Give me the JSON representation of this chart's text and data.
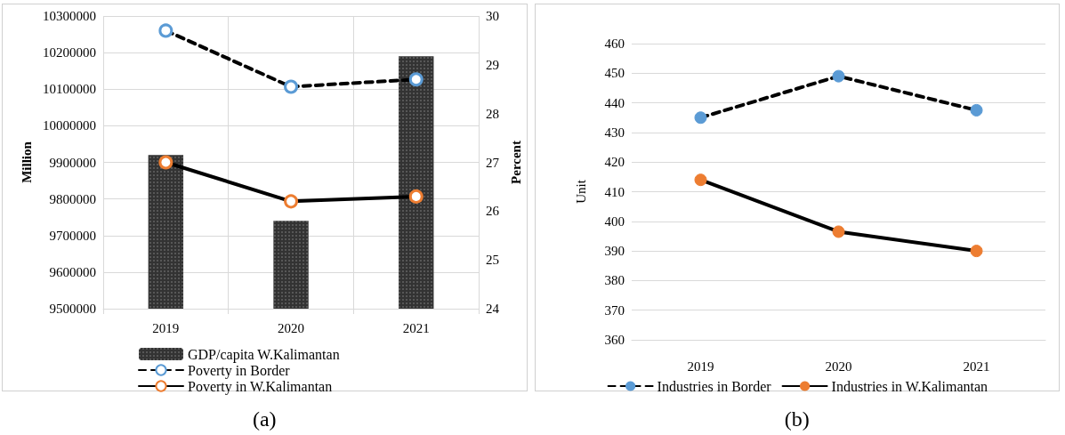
{
  "chart_data": [
    {
      "type": "bar",
      "categories": [
        "2019",
        "2020",
        "2021"
      ],
      "ylabel": "Million",
      "y2label": "Percent",
      "series": [
        {
          "name": "GDP/capita W.Kalimantan",
          "color": "#333333",
          "values": [
            9920000,
            9740000,
            10190000
          ]
        },
        {
          "name": "Poverty in Border",
          "type": "line",
          "axis": "y2",
          "color": "#5b9bd5",
          "line_style": "dashed",
          "values": [
            29.7,
            28.55,
            28.7
          ]
        },
        {
          "name": "Poverty in W.Kalimantan",
          "type": "line",
          "axis": "y2",
          "color": "#ed7d31",
          "line_style": "solid",
          "values": [
            27.0,
            26.2,
            26.3
          ]
        }
      ],
      "ylim": [
        9500000,
        10300000
      ],
      "yticks": [
        9500000,
        9600000,
        9700000,
        9800000,
        9900000,
        10000000,
        10100000,
        10200000,
        10300000
      ],
      "y2lim": [
        24,
        30
      ],
      "y2ticks": [
        24,
        25,
        26,
        27,
        28,
        29,
        30
      ],
      "grid": true,
      "legend": "bottom",
      "marker": "circle",
      "annotations": [
        "(a)"
      ]
    },
    {
      "type": "line",
      "categories": [
        "2019",
        "2020",
        "2021"
      ],
      "ylabel": "Unit",
      "series": [
        {
          "name": "Industries in Border",
          "color": "#5b9bd5",
          "line_style": "dashed",
          "values": [
            435,
            449,
            437.5
          ]
        },
        {
          "name": "Industries in W.Kalimantan",
          "color": "#ed7d31",
          "line_style": "solid",
          "values": [
            414,
            396.5,
            390
          ]
        }
      ],
      "ylim": [
        360,
        460
      ],
      "yticks": [
        360,
        370,
        380,
        390,
        400,
        410,
        420,
        430,
        440,
        450,
        460
      ],
      "grid": "y",
      "legend": "bottom",
      "marker": "circle",
      "annotations": [
        "(b)"
      ]
    }
  ]
}
